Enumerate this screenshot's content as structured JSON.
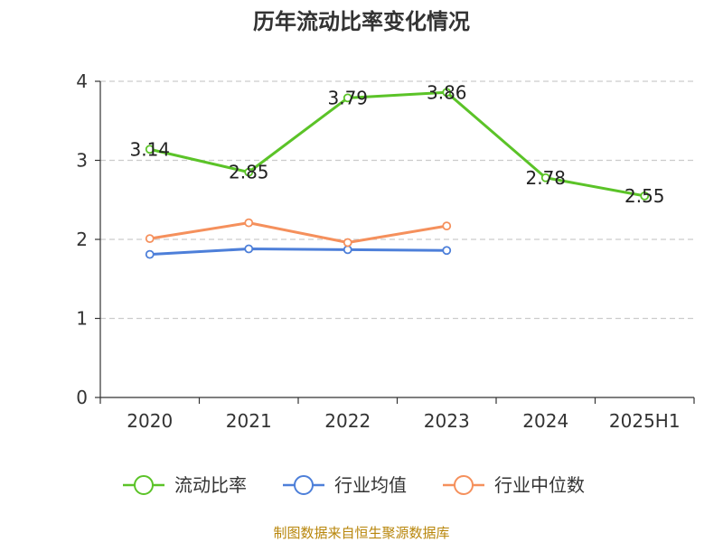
{
  "chart_data": {
    "type": "line",
    "title": "历年流动比率变化情况",
    "source": "制图数据来自恒生聚源数据库",
    "categories": [
      "2020",
      "2021",
      "2022",
      "2023",
      "2024",
      "2025H1"
    ],
    "ylim": [
      0,
      4
    ],
    "yticks": [
      "0",
      "1",
      "2",
      "3",
      "4"
    ],
    "grid": true,
    "legend_position": "bottom",
    "series": [
      {
        "name": "流动比率",
        "color": "#5BC328",
        "values": [
          3.14,
          2.85,
          3.79,
          3.86,
          2.78,
          2.55
        ],
        "labels": [
          "3.14",
          "2.85",
          "3.79",
          "3.86",
          "2.78",
          "2.55"
        ]
      },
      {
        "name": "行业均值",
        "color": "#4D7FD9",
        "values": [
          1.81,
          1.88,
          1.87,
          1.86,
          null,
          null
        ]
      },
      {
        "name": "行业中位数",
        "color": "#F5905C",
        "values": [
          2.01,
          2.21,
          1.96,
          2.17,
          null,
          null
        ]
      }
    ]
  }
}
